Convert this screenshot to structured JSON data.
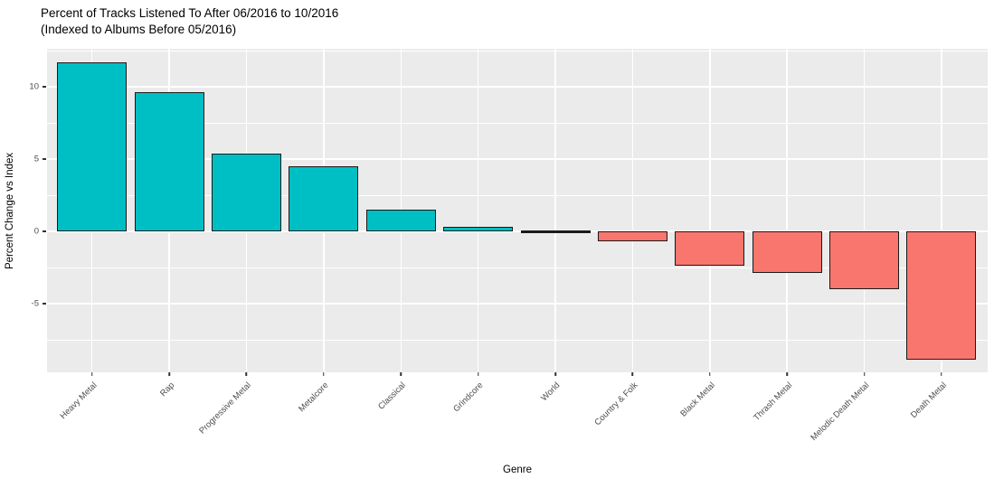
{
  "title": {
    "line1": "Percent of Tracks Listened To After 06/2016 to 10/2016",
    "line2": "(Indexed to Albums Before 05/2016)"
  },
  "chart_data": {
    "type": "bar",
    "title": "Percent of Tracks Listened To After 06/2016 to 10/2016 (Indexed to Albums Before 05/2016)",
    "xlabel": "Genre",
    "ylabel": "Percent Change vs Index",
    "categories": [
      "Heavy Metal",
      "Rap",
      "Progressive Metal",
      "Metalcore",
      "Classical",
      "Grindcore",
      "World",
      "Country & Folk",
      "Black Metal",
      "Thrash Metal",
      "Melodic Death Metal",
      "Death Metal"
    ],
    "values": [
      11.7,
      9.6,
      5.4,
      4.5,
      1.5,
      0.3,
      0.0,
      -0.7,
      -2.4,
      -2.9,
      -4.0,
      -8.9
    ],
    "ylim": [
      -9.75,
      12.625
    ],
    "yticks": [
      -5,
      0,
      5,
      10
    ],
    "ytick_labels": [
      "-5",
      "0",
      "5",
      "10"
    ],
    "yticks_minor": [
      -7.5,
      -2.5,
      2.5,
      7.5,
      12.5
    ],
    "grid": "on",
    "legend": "none",
    "colors": {
      "positive": "#00BFC4",
      "negative": "#F8766D",
      "bar_border": "#1A1A1A",
      "panel_background": "#EBEBEB",
      "gridline": "#FFFFFF",
      "tick_label": "#4D4D4D",
      "text": "#000000"
    }
  }
}
